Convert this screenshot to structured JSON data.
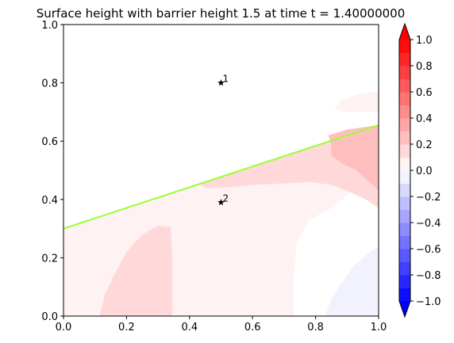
{
  "chart_data": {
    "type": "heatmap",
    "title": "Surface height with barrier height 1.5 at time t =      1.40000000",
    "xlabel": "",
    "ylabel": "",
    "xlim": [
      0.0,
      1.0
    ],
    "ylim": [
      0.0,
      1.0
    ],
    "x_ticks": [
      "0.0",
      "0.2",
      "0.4",
      "0.6",
      "0.8",
      "1.0"
    ],
    "y_ticks": [
      "0.0",
      "0.2",
      "0.4",
      "0.6",
      "0.8",
      "1.0"
    ],
    "colorbar": {
      "range": [
        -1.0,
        1.0
      ],
      "extend": "both",
      "ticks": [
        "−1.0",
        "−0.8",
        "−0.6",
        "−0.4",
        "−0.2",
        "0.0",
        "0.2",
        "0.4",
        "0.6",
        "0.8",
        "1.0"
      ],
      "levels": [
        -1.0,
        -0.9,
        -0.8,
        -0.7,
        -0.6,
        -0.5,
        -0.4,
        -0.3,
        -0.2,
        -0.1,
        0.0,
        0.1,
        0.2,
        0.3,
        0.4,
        0.5,
        0.6,
        0.7,
        0.8,
        0.9,
        1.0
      ],
      "colormap": "bwr",
      "under_color": "#0000ff",
      "over_color": "#ff0000"
    },
    "barrier": {
      "color": "#99ff33",
      "x": [
        0.0,
        1.0
      ],
      "y": [
        0.3,
        0.655
      ]
    },
    "stations": [
      {
        "label": "1",
        "x": 0.5,
        "y": 0.8
      },
      {
        "label": "2",
        "x": 0.5,
        "y": 0.39
      }
    ]
  }
}
